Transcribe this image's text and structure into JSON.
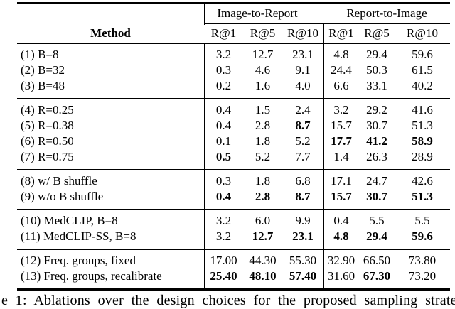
{
  "table": {
    "method_header": "Method",
    "col_groups": [
      {
        "label": "Image-to-Report"
      },
      {
        "label": "Report-to-Image"
      }
    ],
    "metric_headers": [
      "R@1",
      "R@5",
      "R@10",
      "R@1",
      "R@5",
      "R@10"
    ],
    "sections": [
      {
        "rows": [
          {
            "method": "(1) B=8",
            "values": [
              "3.2",
              "12.7",
              "23.1",
              "4.8",
              "29.4",
              "59.6"
            ],
            "bold": [
              0,
              0,
              0,
              0,
              0,
              0
            ]
          },
          {
            "method": "(2) B=32",
            "values": [
              "0.3",
              "4.6",
              "9.1",
              "24.4",
              "50.3",
              "61.5"
            ],
            "bold": [
              0,
              0,
              0,
              0,
              0,
              0
            ]
          },
          {
            "method": "(3) B=48",
            "values": [
              "0.2",
              "1.6",
              "4.0",
              "6.6",
              "33.1",
              "40.2"
            ],
            "bold": [
              0,
              0,
              0,
              0,
              0,
              0
            ]
          }
        ]
      },
      {
        "rows": [
          {
            "method": "(4) R=0.25",
            "values": [
              "0.4",
              "1.5",
              "2.4",
              "3.2",
              "29.2",
              "41.6"
            ],
            "bold": [
              0,
              0,
              0,
              0,
              0,
              0
            ]
          },
          {
            "method": "(5) R=0.38",
            "values": [
              "0.4",
              "2.8",
              "8.7",
              "15.7",
              "30.7",
              "51.3"
            ],
            "bold": [
              0,
              0,
              1,
              0,
              0,
              0
            ]
          },
          {
            "method": "(6) R=0.50",
            "values": [
              "0.1",
              "1.8",
              "5.2",
              "17.7",
              "41.2",
              "58.9"
            ],
            "bold": [
              0,
              0,
              0,
              1,
              1,
              1
            ]
          },
          {
            "method": "(7) R=0.75",
            "values": [
              "0.5",
              "5.2",
              "7.7",
              "1.4",
              "26.3",
              "28.9"
            ],
            "bold": [
              1,
              0,
              0,
              0,
              0,
              0
            ]
          }
        ]
      },
      {
        "rows": [
          {
            "method": "(8) w/ B shuffle",
            "values": [
              "0.3",
              "1.8",
              "6.8",
              "17.1",
              "24.7",
              "42.6"
            ],
            "bold": [
              0,
              0,
              0,
              0,
              0,
              0
            ]
          },
          {
            "method": "(9) w/o B shuffle",
            "values": [
              "0.4",
              "2.8",
              "8.7",
              "15.7",
              "30.7",
              "51.3"
            ],
            "bold": [
              1,
              1,
              1,
              1,
              1,
              1
            ]
          }
        ]
      },
      {
        "rows": [
          {
            "method": "(10) MedCLIP, B=8",
            "values": [
              "3.2",
              "6.0",
              "9.9",
              "0.4",
              "5.5",
              "5.5"
            ],
            "bold": [
              0,
              0,
              0,
              0,
              0,
              0
            ]
          },
          {
            "method": "(11) MedCLIP-SS, B=8",
            "values": [
              "3.2",
              "12.7",
              "23.1",
              "4.8",
              "29.4",
              "59.6"
            ],
            "bold": [
              0,
              1,
              1,
              1,
              1,
              1
            ]
          }
        ]
      },
      {
        "rows": [
          {
            "method": "(12) Freq. groups, fixed",
            "values": [
              "17.00",
              "44.30",
              "55.30",
              "32.90",
              "66.50",
              "73.80"
            ],
            "bold": [
              0,
              0,
              0,
              0,
              0,
              0
            ]
          },
          {
            "method": "(13) Freq. groups, recalibrate",
            "values": [
              "25.40",
              "48.10",
              "57.40",
              "31.60",
              "67.30",
              "73.20"
            ],
            "bold": [
              1,
              1,
              1,
              0,
              1,
              0
            ]
          }
        ]
      }
    ]
  },
  "caption": {
    "visible_text": "e 1: Ablations over the design choices for the proposed sampling strate"
  },
  "colors": {
    "ink": "#000000",
    "background": "#ffffff"
  }
}
